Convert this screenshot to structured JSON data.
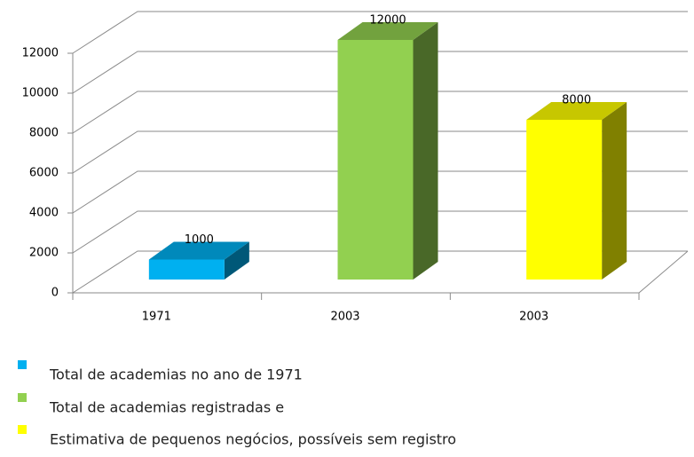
{
  "chart_data": {
    "type": "bar3d",
    "categories": [
      "1971",
      "2003",
      "2003"
    ],
    "values": [
      1000,
      12000,
      8000
    ],
    "colors": [
      "#00b0f0",
      "#92d050",
      "#ffff00"
    ],
    "legend": [
      "Total de academias no ano de 1971",
      "Total de academias registradas e",
      "Estimativa de pequenos negócios, possíveis sem registro"
    ],
    "ylim": [
      0,
      12000
    ],
    "yticks": [
      0,
      2000,
      4000,
      6000,
      8000,
      10000,
      12000
    ],
    "grid": true
  }
}
